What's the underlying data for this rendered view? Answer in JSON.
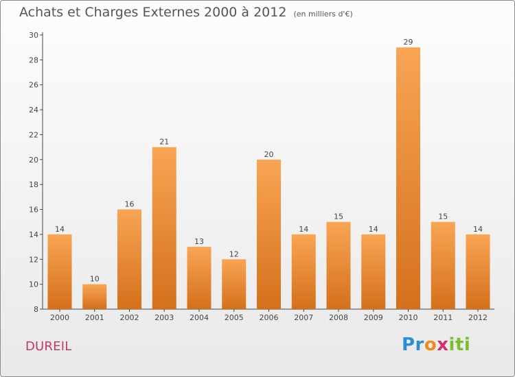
{
  "title": "Achats et Charges Externes 2000 à 2012",
  "subtitle": "(en milliers d'€)",
  "place": "DUREIL",
  "brand": {
    "p1": "Pr",
    "p2": "o",
    "p3": "x",
    "p4": "iti"
  },
  "colors": {
    "bar_light": "#f8a554",
    "bar_dark": "#d4701c",
    "axis": "#444444",
    "text": "#444444",
    "title": "#555555",
    "place": "#c0396b"
  },
  "chart_data": {
    "type": "bar",
    "title": "Achats et Charges Externes 2000 à 2012",
    "subtitle": "(en milliers d'€)",
    "xlabel": "",
    "ylabel": "",
    "categories": [
      "2000",
      "2001",
      "2002",
      "2003",
      "2004",
      "2005",
      "2006",
      "2007",
      "2008",
      "2009",
      "2010",
      "2011",
      "2012"
    ],
    "values": [
      14,
      10,
      16,
      21,
      13,
      12,
      20,
      14,
      15,
      14,
      29,
      15,
      14
    ],
    "ylim": [
      8,
      30
    ],
    "yticks": [
      8,
      10,
      12,
      14,
      16,
      18,
      20,
      22,
      24,
      26,
      28,
      30
    ],
    "grid": false,
    "legend": "none",
    "data_labels": true
  }
}
